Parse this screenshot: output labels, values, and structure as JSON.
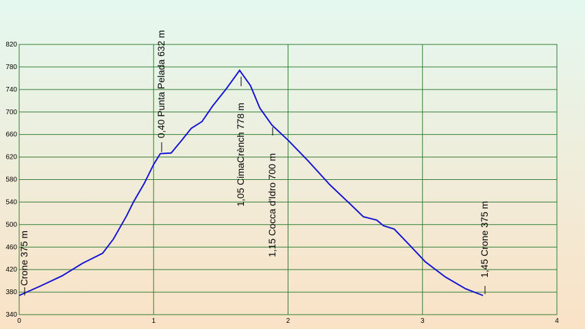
{
  "chart_data": {
    "type": "line",
    "x": [
      0,
      0.16,
      0.32,
      0.47,
      0.62,
      0.7,
      0.8,
      0.85,
      0.93,
      1.0,
      1.05,
      1.13,
      1.21,
      1.28,
      1.36,
      1.44,
      1.54,
      1.64,
      1.72,
      1.79,
      1.88,
      2.0,
      2.15,
      2.31,
      2.46,
      2.56,
      2.66,
      2.71,
      2.79,
      2.91,
      3.02,
      3.17,
      3.32,
      3.45
    ],
    "series": [
      {
        "color": "#1414d2",
        "values": [
          374,
          391,
          409,
          431,
          449,
          474,
          516,
          540,
          573,
          607,
          626,
          627,
          650,
          671,
          683,
          711,
          741,
          774,
          747,
          707,
          677,
          650,
          613,
          571,
          537,
          514,
          508,
          498,
          492,
          462,
          434,
          407,
          386,
          374
        ]
      }
    ],
    "xlim": [
      0,
      4
    ],
    "xticks": [
      0,
      1,
      2,
      3,
      4
    ],
    "ylim": [
      340,
      820
    ],
    "yticks": [
      340,
      380,
      420,
      460,
      500,
      540,
      580,
      620,
      660,
      700,
      740,
      780,
      820
    ],
    "grid": true,
    "grid_color": "#2e7d32",
    "annotations": [
      "Crone 375 m",
      "0,40 Punta Pelada 632 m",
      "1,05 CimaCrènch 778 m",
      "1,15 Cocca d'Idro 700 m",
      "1,45 Crone 375 m"
    ]
  }
}
